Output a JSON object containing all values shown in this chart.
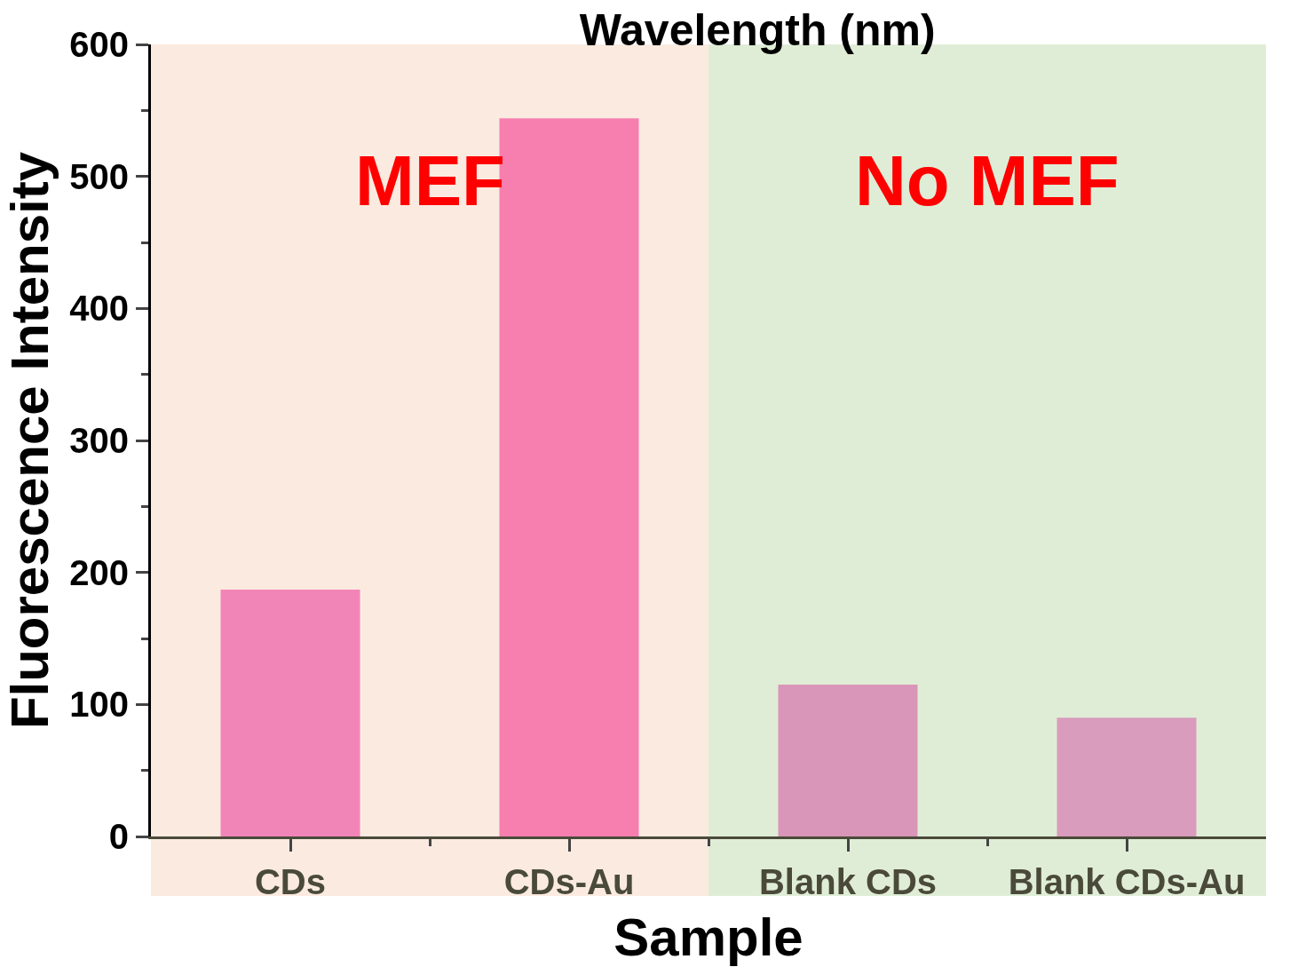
{
  "chart_data": {
    "type": "bar",
    "title": "Wavelength (nm)",
    "xlabel": "Sample",
    "ylabel": "Fluorescence Intensity",
    "categories": [
      "CDs",
      "CDs-Au",
      "Blank CDs",
      "Blank CDs-Au"
    ],
    "values": [
      187,
      544,
      115,
      90
    ],
    "colors": [
      "#f285b8",
      "#f77fb0",
      "#d996b8",
      "#d99cbc"
    ],
    "ylim": [
      0,
      600
    ],
    "yticks": [
      0,
      100,
      200,
      300,
      400,
      500,
      600
    ],
    "bands": [
      {
        "axis": "x",
        "from": "CDs",
        "to": "CDs-Au",
        "label": "MEF",
        "color": "#fbeae0"
      },
      {
        "axis": "x",
        "from": "Blank CDs",
        "to": "Blank CDs-Au",
        "label": "No MEF",
        "color": "#e0edd6"
      }
    ],
    "grid": false
  }
}
